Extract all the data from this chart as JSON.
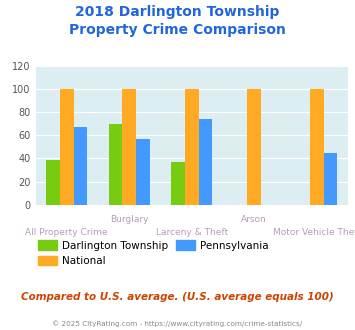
{
  "title_line1": "2018 Darlington Township",
  "title_line2": "Property Crime Comparison",
  "categories": [
    "All Property Crime",
    "Burglary",
    "Larceny & Theft",
    "Arson",
    "Motor Vehicle Theft"
  ],
  "top_labels": {
    "1": "Burglary",
    "3": "Arson"
  },
  "bottom_labels": {
    "0": "All Property Crime",
    "2": "Larceny & Theft",
    "4": "Motor Vehicle Theft"
  },
  "series": {
    "Darlington Township": [
      39,
      70,
      37,
      0,
      0
    ],
    "National": [
      100,
      100,
      100,
      100,
      100
    ],
    "Pennsylvania": [
      67,
      57,
      74,
      0,
      45
    ]
  },
  "colors": {
    "Darlington Township": "#77cc11",
    "National": "#ffaa22",
    "Pennsylvania": "#4499ff"
  },
  "ylim": [
    0,
    120
  ],
  "yticks": [
    0,
    20,
    40,
    60,
    80,
    100,
    120
  ],
  "chart_bg": "#ddeef2",
  "title_color": "#2266dd",
  "label_color": "#bb99bb",
  "note_text": "Compared to U.S. average. (U.S. average equals 100)",
  "note_color": "#cc4400",
  "footer_text": "© 2025 CityRating.com - https://www.cityrating.com/crime-statistics/",
  "footer_color": "#888888",
  "bar_width": 0.22
}
